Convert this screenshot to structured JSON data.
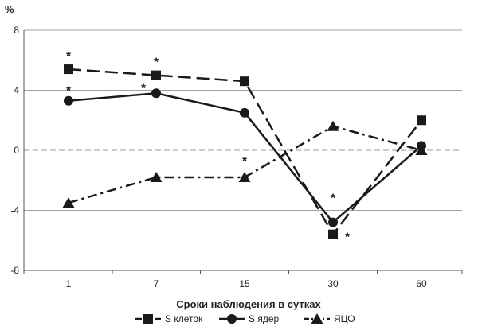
{
  "chart_data": {
    "type": "line",
    "title": "",
    "unit_label": "%",
    "xlabel": "Сроки наблюдения в сутках",
    "ylabel": "",
    "categories": [
      "1",
      "7",
      "15",
      "30",
      "60"
    ],
    "ylim": [
      -8,
      8
    ],
    "yticks": [
      "8",
      "4",
      "0",
      "-4",
      "-8"
    ],
    "ytick_values": [
      8,
      4,
      0,
      -4,
      -8
    ],
    "grid": true,
    "zero_line_dashed": true,
    "legend_position": "bottom",
    "series": [
      {
        "name": "S клеток",
        "values": [
          5.4,
          5.0,
          4.6,
          -5.6,
          2.0
        ],
        "marker": "square",
        "dash": "long-dash",
        "color": "#1a1a1a",
        "significant": [
          true,
          true,
          false,
          true,
          false
        ]
      },
      {
        "name": "S ядер",
        "values": [
          3.3,
          3.8,
          2.5,
          -4.8,
          0.3
        ],
        "marker": "circle",
        "dash": "solid",
        "color": "#1a1a1a",
        "significant": [
          true,
          true,
          false,
          true,
          false
        ]
      },
      {
        "name": "ЯЦО",
        "values": [
          -3.5,
          -1.8,
          -1.8,
          1.6,
          0.0
        ],
        "marker": "triangle",
        "dash": "dash-dot",
        "color": "#1a1a1a",
        "significant": [
          false,
          false,
          true,
          false,
          false
        ]
      }
    ],
    "significance_marker": "*"
  }
}
